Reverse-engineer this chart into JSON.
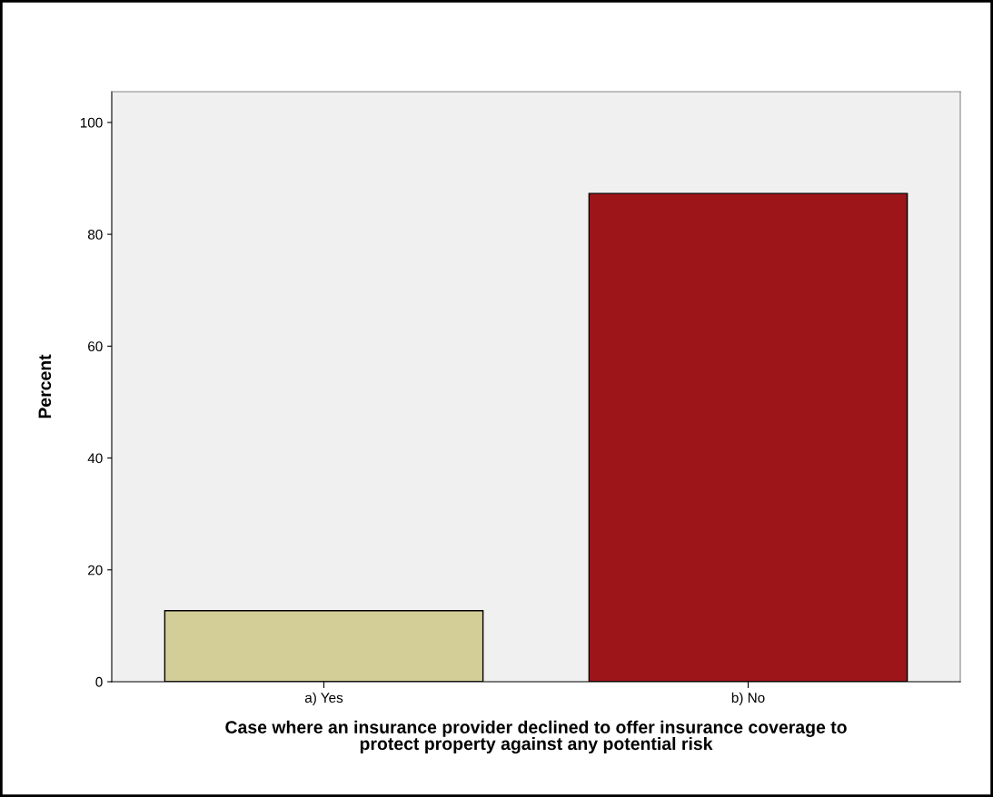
{
  "chart_data": {
    "type": "bar",
    "xlabel": "Case where an insurance provider declined to offer insurance coverage to\nprotect property against any potential risk",
    "ylabel": "Percent",
    "categories": [
      "a) Yes",
      "b) No"
    ],
    "values": [
      12.7,
      87.3
    ],
    "colors": [
      "#d3ce97",
      "#9e1519"
    ],
    "ylim": [
      0,
      105.5
    ],
    "yticks": [
      0,
      20,
      40,
      60,
      80,
      100
    ],
    "grid": false,
    "legend": false
  }
}
